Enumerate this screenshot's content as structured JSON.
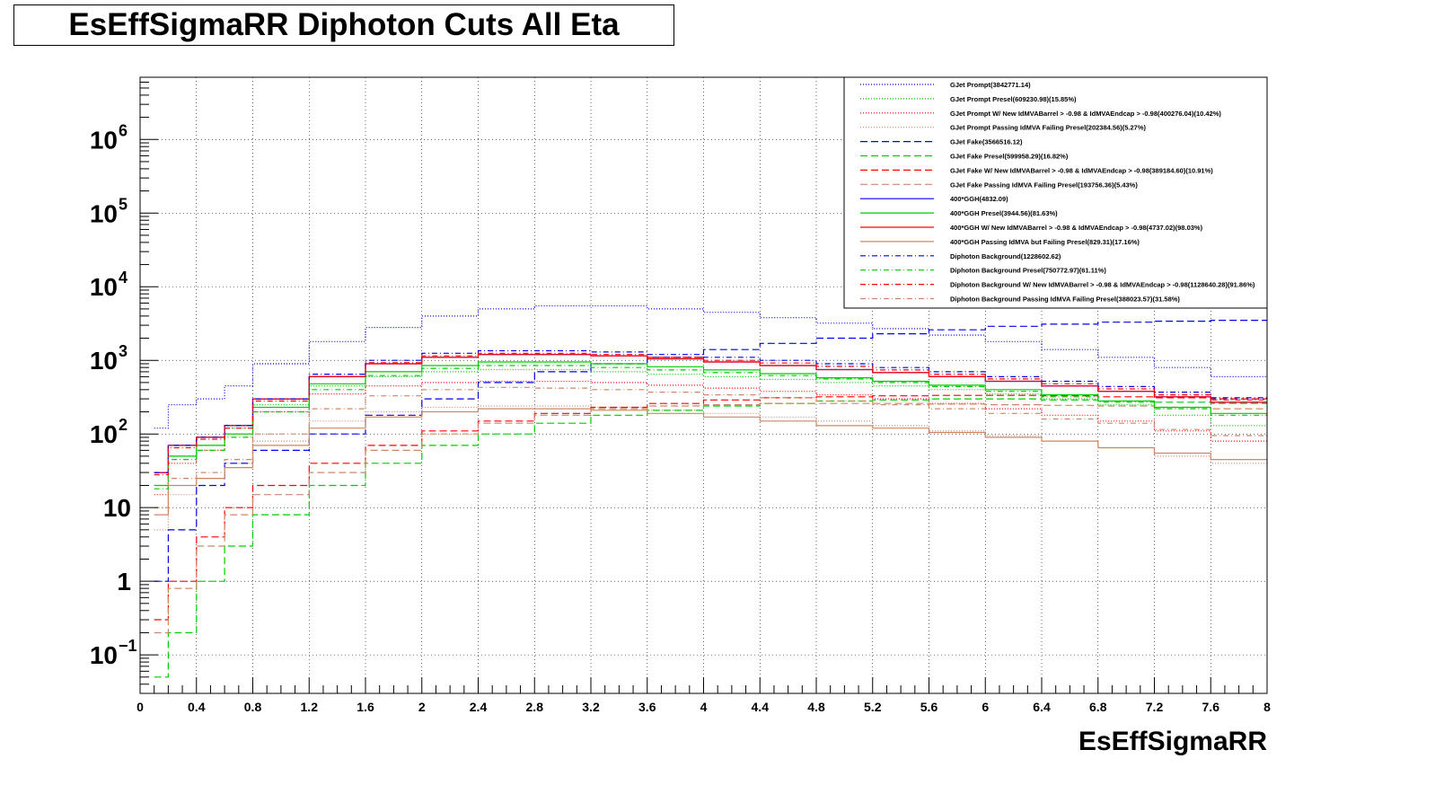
{
  "chart_data": {
    "type": "line",
    "title": "EsEffSigmaRR Diphoton Cuts All Eta",
    "xlabel": "EsEffSigmaRR",
    "ylabel": "",
    "xlim": [
      0,
      8
    ],
    "ylim": [
      0.03,
      7000000
    ],
    "yscale": "log",
    "grid": true,
    "legend_position": "top-right",
    "x_ticks": [
      "0",
      "0.4",
      "0.8",
      "1.2",
      "1.6",
      "2",
      "2.4",
      "2.8",
      "3.2",
      "3.6",
      "4",
      "4.4",
      "4.8",
      "5.2",
      "5.6",
      "6",
      "6.4",
      "6.8",
      "7.2",
      "7.6",
      "8"
    ],
    "y_ticks": [
      {
        "value": 0.1,
        "base": "10",
        "exp": "−1"
      },
      {
        "value": 1,
        "base": "1",
        "exp": ""
      },
      {
        "value": 10,
        "base": "10",
        "exp": ""
      },
      {
        "value": 100,
        "base": "10",
        "exp": "2"
      },
      {
        "value": 1000,
        "base": "10",
        "exp": "3"
      },
      {
        "value": 10000,
        "base": "10",
        "exp": "4"
      },
      {
        "value": 100000,
        "base": "10",
        "exp": "5"
      },
      {
        "value": 1000000,
        "base": "10",
        "exp": "6"
      }
    ],
    "x": [
      0.2,
      0.4,
      0.6,
      0.8,
      1.2,
      1.6,
      2.0,
      2.4,
      2.8,
      3.2,
      3.6,
      4.0,
      4.4,
      4.8,
      5.2,
      5.6,
      6.0,
      6.4,
      6.8,
      7.2,
      7.6,
      8.0
    ],
    "series": [
      {
        "name": "GJet Prompt(3842771.14)",
        "color": "#0000ee",
        "dash": "1,2",
        "values": [
          120,
          250,
          300,
          450,
          900,
          1800,
          2800,
          4000,
          5000,
          5500,
          5500,
          5000,
          4500,
          3800,
          3200,
          2700,
          2200,
          1800,
          1400,
          1100,
          800,
          600
        ]
      },
      {
        "name": "GJet Prompt Presel(609230.98)(15.85%)",
        "color": "#00cc00",
        "dash": "1,2",
        "values": [
          20,
          50,
          70,
          120,
          250,
          450,
          600,
          700,
          750,
          750,
          700,
          650,
          600,
          550,
          500,
          450,
          400,
          350,
          300,
          250,
          180,
          130
        ]
      },
      {
        "name": "GJet Prompt W/ New IdMVABarrel > -0.98 & IdMVAEndcap > -0.98(400276.04)(10.42%)",
        "color": "#ff0000",
        "dash": "1,2",
        "values": [
          15,
          40,
          60,
          100,
          200,
          350,
          450,
          500,
          520,
          520,
          500,
          460,
          420,
          380,
          340,
          300,
          260,
          220,
          180,
          150,
          110,
          80
        ]
      },
      {
        "name": "GJet Prompt Passing IdMVA Failing Presel(202384.56)(5.27%)",
        "color": "#cc8866",
        "dash": "1,2",
        "values": [
          5,
          15,
          25,
          40,
          80,
          150,
          200,
          230,
          240,
          240,
          230,
          210,
          190,
          170,
          150,
          130,
          110,
          95,
          80,
          65,
          50,
          40
        ]
      },
      {
        "name": "GJet Fake(3566516.12)",
        "color": "#0000ee",
        "dash": "8,4",
        "values": [
          1,
          5,
          20,
          40,
          60,
          100,
          180,
          300,
          500,
          700,
          900,
          1100,
          1400,
          1700,
          2000,
          2300,
          2600,
          2900,
          3100,
          3300,
          3400,
          3500
        ]
      },
      {
        "name": "GJet Fake Presel(599958.29)(16.82%)",
        "color": "#00cc00",
        "dash": "8,4",
        "values": [
          0.05,
          0.2,
          1,
          3,
          8,
          20,
          40,
          70,
          100,
          140,
          180,
          210,
          240,
          260,
          280,
          290,
          300,
          300,
          290,
          280,
          270,
          260
        ]
      },
      {
        "name": "GJet Fake W/ New IdMVABarrel > -0.98 & IdMVAEndcap > -0.98(389184.60)(10.91%)",
        "color": "#ff0000",
        "dash": "8,4",
        "values": [
          0.3,
          1,
          4,
          10,
          20,
          40,
          70,
          110,
          150,
          190,
          230,
          260,
          290,
          310,
          320,
          330,
          335,
          335,
          330,
          320,
          310,
          300
        ]
      },
      {
        "name": "GJet Fake Passing IdMVA Failing Presel(193756.36)(5.43%)",
        "color": "#cc8866",
        "dash": "8,4",
        "values": [
          0.2,
          0.8,
          3,
          8,
          15,
          30,
          60,
          100,
          140,
          180,
          220,
          240,
          250,
          260,
          260,
          260,
          255,
          250,
          245,
          240,
          230,
          220
        ]
      },
      {
        "name": "400*GGH(4832.09)",
        "color": "#0000ee",
        "dash": "",
        "values": [
          30,
          70,
          90,
          130,
          300,
          600,
          900,
          1100,
          1200,
          1200,
          1150,
          1050,
          950,
          850,
          750,
          680,
          600,
          520,
          450,
          380,
          320,
          270
        ]
      },
      {
        "name": "400*GGH Presel(3944.56)(81.63%)",
        "color": "#00cc00",
        "dash": "",
        "values": [
          20,
          50,
          70,
          100,
          230,
          480,
          700,
          850,
          950,
          950,
          900,
          820,
          740,
          660,
          580,
          520,
          460,
          400,
          340,
          280,
          230,
          190
        ]
      },
      {
        "name": "400*GGH W/ New IdMVABarrel > -0.98 & IdMVAEndcap > -0.98(4737.02)(98.03%)",
        "color": "#ff0000",
        "dash": "",
        "values": [
          30,
          70,
          90,
          130,
          300,
          600,
          900,
          1100,
          1200,
          1200,
          1150,
          1050,
          950,
          850,
          750,
          680,
          600,
          520,
          450,
          380,
          320,
          270
        ]
      },
      {
        "name": "400*GGH Passing IdMVA but Failing Presel(829.31)(17.16%)",
        "color": "#cc8866",
        "dash": "",
        "values": [
          8,
          20,
          25,
          35,
          70,
          120,
          170,
          200,
          220,
          220,
          210,
          190,
          170,
          150,
          130,
          120,
          105,
          90,
          80,
          65,
          55,
          45
        ]
      },
      {
        "name": "Diphoton Background(1228602.62)",
        "color": "#0000ee",
        "dash": "6,3,1,3",
        "values": [
          30,
          70,
          90,
          130,
          300,
          650,
          1000,
          1250,
          1350,
          1350,
          1300,
          1200,
          1100,
          1000,
          900,
          800,
          700,
          600,
          520,
          440,
          370,
          310
        ]
      },
      {
        "name": "Diphoton Background Presel(750772.97)(61.11%)",
        "color": "#00cc00",
        "dash": "6,3,1,3",
        "values": [
          18,
          45,
          60,
          90,
          200,
          400,
          620,
          780,
          850,
          850,
          800,
          740,
          680,
          620,
          560,
          500,
          440,
          380,
          320,
          270,
          220,
          180
        ]
      },
      {
        "name": "Diphoton Background W/ New IdMVABarrel > -0.98 & IdMVAEndcap > -0.98(1128640.28)(91.86%)",
        "color": "#ff0000",
        "dash": "6,3,1,3",
        "values": [
          28,
          65,
          85,
          120,
          280,
          600,
          930,
          1150,
          1250,
          1250,
          1200,
          1100,
          1000,
          920,
          830,
          740,
          650,
          560,
          480,
          410,
          340,
          290
        ]
      },
      {
        "name": "Diphoton Background Passing IdMVA Failing Presel(388023.57)(31.58%)",
        "color": "#cc8866",
        "dash": "6,3,1,3",
        "values": [
          10,
          25,
          30,
          45,
          100,
          220,
          330,
          400,
          430,
          420,
          400,
          370,
          340,
          310,
          280,
          250,
          220,
          190,
          160,
          140,
          115,
          95
        ]
      }
    ]
  }
}
